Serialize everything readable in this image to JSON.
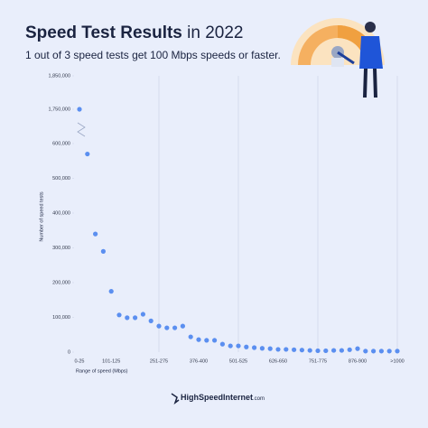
{
  "chart_data": {
    "type": "scatter",
    "title": "Speed Test Results",
    "title_suffix": "in 2022",
    "subtitle": "1 out of 3 speed tests get 100 Mbps speeds or faster.",
    "y_label": "Number of speed tests",
    "x_label": "Range of speed (Mbps)",
    "categories": [
      "0-25",
      null,
      null,
      null,
      "101-125",
      null,
      null,
      null,
      null,
      null,
      "251-275",
      null,
      null,
      null,
      null,
      "376-400",
      null,
      null,
      null,
      null,
      "501-525",
      null,
      null,
      null,
      null,
      "626-650",
      null,
      null,
      null,
      null,
      "751-775",
      null,
      null,
      null,
      null,
      "876-900",
      null,
      null,
      null,
      null,
      ">1000"
    ],
    "values": [
      1750000,
      570000,
      340000,
      290000,
      175000,
      107000,
      99000,
      99000,
      109000,
      90000,
      75000,
      70000,
      70000,
      75000,
      44000,
      36000,
      34000,
      34000,
      23000,
      18000,
      18000,
      15000,
      13000,
      11000,
      10000,
      8000,
      8000,
      7000,
      6000,
      5000,
      4000,
      4000,
      5000,
      5000,
      7000,
      10000,
      3000,
      3000,
      3000,
      3000,
      3000
    ],
    "color": "#5b8ff0",
    "ylim": [
      0,
      600000
    ],
    "yticks": [
      0,
      {
        "value": 100000,
        "label": "100,000"
      },
      {
        "value": 200000,
        "label": "200,000"
      },
      {
        "value": 300000,
        "label": "300,000"
      },
      {
        "value": 400000,
        "label": "400,000"
      },
      {
        "value": 500000,
        "label": "500,000"
      },
      {
        "value": 600000,
        "label": "600,000"
      }
    ],
    "upper_ylim": [
      1750000,
      1850000
    ],
    "upper_yticks": [
      {
        "value": 1750000,
        "label": "1,750,000"
      },
      {
        "value": 1850000,
        "label": "1,850,000"
      }
    ],
    "axis_break": true,
    "source": "HighSpeedInternet",
    "source_suffix": ".com"
  }
}
